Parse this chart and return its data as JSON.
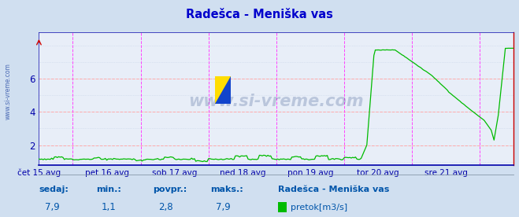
{
  "title": "Radešca - Meniška vas",
  "title_color": "#0000cc",
  "bg_color": "#d0dff0",
  "plot_bg_color": "#e8eef8",
  "grid_color": "#ffaaaa",
  "grid_dot_color": "#c8d4e8",
  "line_color": "#00bb00",
  "axis_color": "#0000aa",
  "vline_color": "#ff44ff",
  "watermark": "www.si-vreme.com",
  "watermark_color": "#1a3a7a",
  "left_label": "www.si-vreme.com",
  "x_tick_labels": [
    "čet 15 avg",
    "pet 16 avg",
    "sob 17 avg",
    "ned 18 avg",
    "pon 19 avg",
    "tor 20 avg",
    "sre 21 avg"
  ],
  "x_tick_positions": [
    0,
    48,
    96,
    144,
    192,
    240,
    288
  ],
  "vline_positions": [
    24,
    72,
    120,
    168,
    216,
    264,
    312
  ],
  "ylim": [
    0.8,
    8.8
  ],
  "yticks": [
    2,
    4,
    6
  ],
  "n_points": 337,
  "footer_color": "#0055aa",
  "footer_labels": [
    "sedaj:",
    "min.:",
    "povpr.:",
    "maks.:"
  ],
  "footer_values": [
    "7,9",
    "1,1",
    "2,8",
    "7,9"
  ],
  "legend_label": "pretok[m3/s]",
  "legend_station": "Radešca - Meniška vas"
}
